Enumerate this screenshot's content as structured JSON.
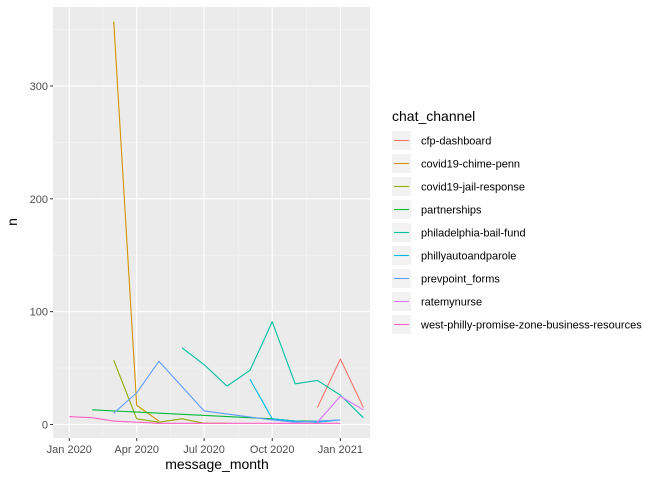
{
  "chart_data": {
    "type": "line",
    "xlabel": "message_month",
    "ylabel": "n",
    "x_ticks": [
      "Jan 2020",
      "Apr 2020",
      "Jul 2020",
      "Oct 2020",
      "Jan 2021"
    ],
    "y_ticks": [
      "0",
      "100",
      "200",
      "300"
    ],
    "ylim": [
      -12,
      370
    ],
    "xlim": [
      "2019-12-10",
      "2021-02-10"
    ],
    "grid": true,
    "legend": {
      "title": "chat_channel",
      "position": "right"
    },
    "series": [
      {
        "name": "cfp-dashboard",
        "color": "#F8766D",
        "points": [
          [
            "2020-12-01",
            15
          ],
          [
            "2021-01-01",
            58
          ],
          [
            "2021-02-01",
            15
          ]
        ]
      },
      {
        "name": "covid19-chime-penn",
        "color": "#D39200",
        "points": [
          [
            "2020-03-01",
            357
          ],
          [
            "2020-04-01",
            17
          ],
          [
            "2020-05-01",
            3
          ]
        ]
      },
      {
        "name": "covid19-jail-response",
        "color": "#93AA00",
        "points": [
          [
            "2020-03-01",
            57
          ],
          [
            "2020-04-01",
            5
          ],
          [
            "2020-05-01",
            2
          ],
          [
            "2020-06-01",
            5
          ],
          [
            "2020-07-01",
            1
          ],
          [
            "2020-08-01",
            1
          ]
        ]
      },
      {
        "name": "partnerships",
        "color": "#00BA38",
        "points": [
          [
            "2020-02-01",
            13
          ],
          [
            "2020-03-01",
            12
          ],
          [
            "2020-10-01",
            5
          ],
          [
            "2020-11-01",
            3
          ],
          [
            "2020-12-01",
            3
          ]
        ]
      },
      {
        "name": "philadelphia-bail-fund",
        "color": "#00C19F",
        "points": [
          [
            "2020-06-01",
            68
          ],
          [
            "2020-07-01",
            53
          ],
          [
            "2020-08-01",
            34
          ],
          [
            "2020-09-01",
            48
          ],
          [
            "2020-10-01",
            91
          ],
          [
            "2020-11-01",
            36
          ],
          [
            "2020-12-01",
            39
          ],
          [
            "2021-01-01",
            26
          ],
          [
            "2021-02-01",
            6
          ]
        ]
      },
      {
        "name": "phillyautoandparole",
        "color": "#00B9E3",
        "points": [
          [
            "2020-09-01",
            40
          ],
          [
            "2020-10-01",
            5
          ],
          [
            "2020-11-01",
            3
          ],
          [
            "2020-12-01",
            2
          ],
          [
            "2021-01-01",
            4
          ]
        ]
      },
      {
        "name": "prevpoint_forms",
        "color": "#619CFF",
        "points": [
          [
            "2020-03-01",
            10
          ],
          [
            "2020-04-01",
            28
          ],
          [
            "2020-05-01",
            56
          ],
          [
            "2020-07-01",
            12
          ],
          [
            "2020-10-01",
            4
          ],
          [
            "2020-11-01",
            2
          ],
          [
            "2020-12-01",
            3
          ],
          [
            "2021-01-01",
            4
          ]
        ]
      },
      {
        "name": "ratemynurse",
        "color": "#DB72FB",
        "points": [
          [
            "2020-12-01",
            2
          ],
          [
            "2021-01-01",
            25
          ],
          [
            "2021-02-01",
            13
          ]
        ]
      },
      {
        "name": "west-philly-promise-zone-business-resources",
        "color": "#FF61C3",
        "points": [
          [
            "2020-01-01",
            7
          ],
          [
            "2020-02-01",
            6
          ],
          [
            "2020-03-01",
            3
          ],
          [
            "2020-04-01",
            2
          ],
          [
            "2020-05-01",
            1
          ],
          [
            "2020-07-01",
            1
          ],
          [
            "2020-10-01",
            1
          ],
          [
            "2021-01-01",
            1
          ]
        ]
      }
    ]
  }
}
